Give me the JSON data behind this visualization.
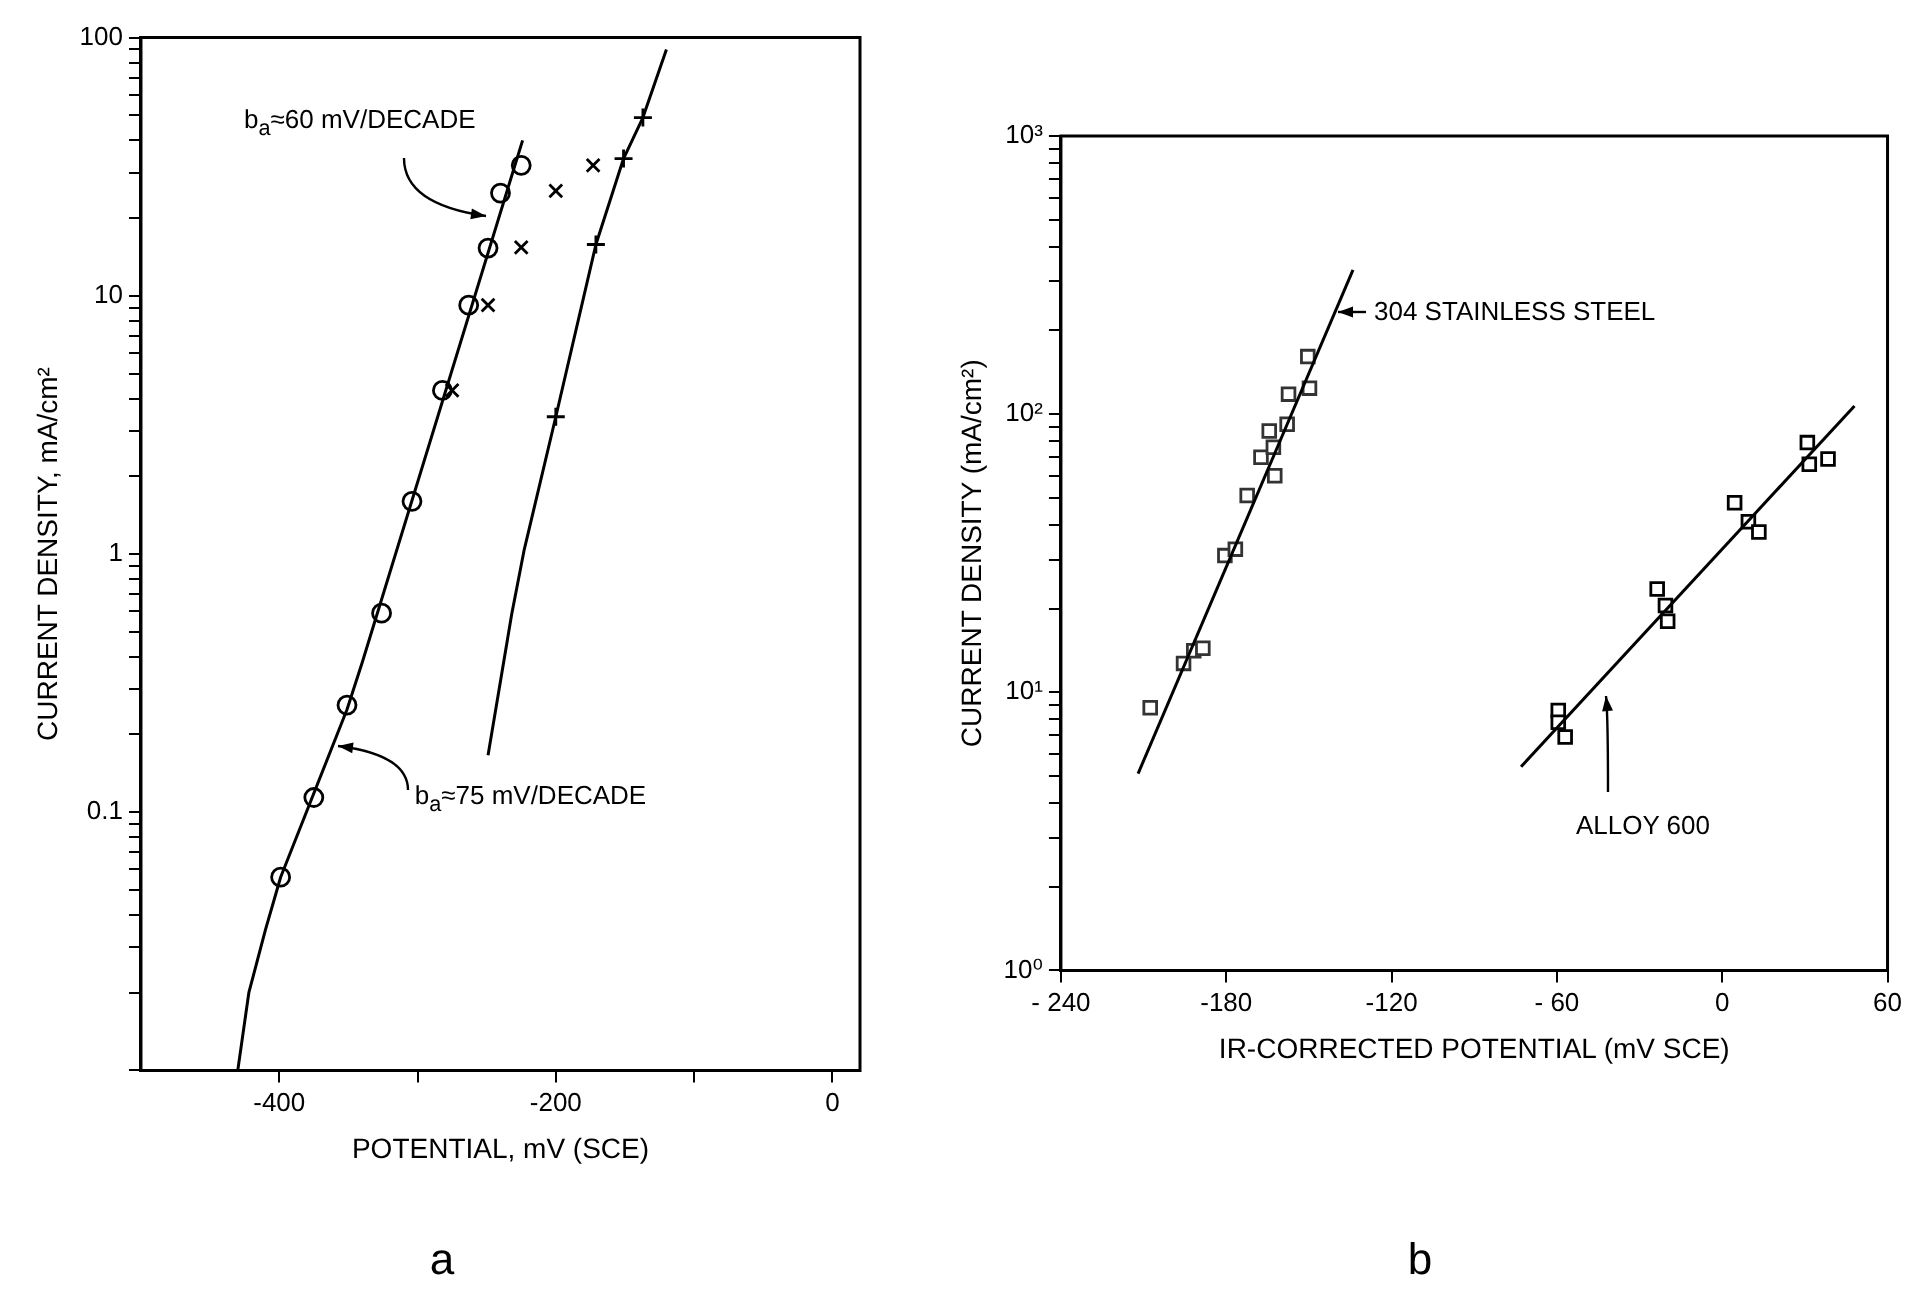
{
  "chart_data": [
    {
      "type": "scatter",
      "title": "a",
      "xlabel": "POTENTIAL, mV (SCE)",
      "ylabel": "CURRENT DENSITY, mA/cm²",
      "log": "y",
      "grid": false,
      "legend": false,
      "xlim": [
        -500,
        20
      ],
      "xticks": [
        -400,
        {
          "value": -300,
          "label": null
        },
        -200,
        {
          "value": -100,
          "label": null
        },
        0
      ],
      "ylim": [
        0.01,
        100
      ],
      "yticks": [
        {
          "value": 0.01,
          "label": null
        },
        {
          "value": 0.02,
          "label": null
        },
        {
          "value": 0.03,
          "label": null
        },
        {
          "value": 0.04,
          "label": null
        },
        {
          "value": 0.05,
          "label": null
        },
        {
          "value": 0.06,
          "label": null
        },
        {
          "value": 0.07,
          "label": null
        },
        {
          "value": 0.08,
          "label": null
        },
        {
          "value": 0.09,
          "label": null
        },
        0.1,
        {
          "value": 0.2,
          "label": null
        },
        {
          "value": 0.3,
          "label": null
        },
        {
          "value": 0.4,
          "label": null
        },
        {
          "value": 0.5,
          "label": null
        },
        {
          "value": 0.6,
          "label": null
        },
        {
          "value": 0.7,
          "label": null
        },
        {
          "value": 0.8,
          "label": null
        },
        {
          "value": 0.9,
          "label": null
        },
        1,
        {
          "value": 2,
          "label": null
        },
        {
          "value": 3,
          "label": null
        },
        {
          "value": 4,
          "label": null
        },
        {
          "value": 5,
          "label": null
        },
        {
          "value": 6,
          "label": null
        },
        {
          "value": 7,
          "label": null
        },
        {
          "value": 8,
          "label": null
        },
        {
          "value": 9,
          "label": null
        },
        10,
        {
          "value": 20,
          "label": null
        },
        {
          "value": 30,
          "label": null
        },
        {
          "value": 40,
          "label": null
        },
        {
          "value": 50,
          "label": null
        },
        {
          "value": 60,
          "label": null
        },
        {
          "value": 70,
          "label": null
        },
        {
          "value": 80,
          "label": null
        },
        {
          "value": 90,
          "label": null
        },
        100
      ],
      "series": [
        {
          "type": "scatter",
          "marker": "circle",
          "color": "#000000",
          "x": [
            -399,
            -375,
            -351,
            -326,
            -304,
            -282,
            -263,
            -249,
            -240,
            -225
          ],
          "values": [
            0.056,
            0.114,
            0.26,
            0.59,
            1.6,
            4.3,
            9.2,
            15.3,
            25,
            32
          ]
        },
        {
          "type": "line",
          "marker": "none",
          "color": "#000000",
          "x": [
            -430,
            -422,
            -410,
            -399,
            -351,
            -340,
            -224
          ],
          "values": [
            0.01,
            0.02,
            0.035,
            0.056,
            0.25,
            0.38,
            40
          ]
        },
        {
          "type": "scatter",
          "marker": "cross",
          "color": "#000000",
          "x": [
            -275,
            -249,
            -225,
            -200,
            -173
          ],
          "values": [
            4.3,
            9.2,
            15.4,
            25.5,
            32
          ]
        },
        {
          "type": "scatter",
          "marker": "plus",
          "color": "#000000",
          "x": [
            -200,
            -171,
            -151,
            -137
          ],
          "values": [
            3.4,
            15.8,
            34,
            49
          ]
        },
        {
          "type": "line",
          "marker": "none",
          "color": "#000000",
          "x": [
            -249,
            -232,
            -223,
            -200,
            -171,
            -151,
            -137,
            -120
          ],
          "values": [
            0.166,
            0.58,
            1.03,
            3.4,
            15.8,
            34,
            49,
            90
          ]
        }
      ],
      "annotations": [
        "b$_{a}$≈60 mV/DECADE",
        {
          "text": "b$_{a}$≈75 mV/DECADE",
          "x": -357,
          "y": 0.18
        }
      ]
    },
    {
      "type": "scatter",
      "title": "b",
      "xlabel": "IR-CORRECTED POTENTIAL (mV SCE)",
      "ylabel": "CURRENT DENSITY (mA/cm²)",
      "log": "y",
      "grid": false,
      "legend": false,
      "xlim": [
        -240,
        60
      ],
      "xticks": [
        {
          "value": -240,
          "label": "- 240"
        },
        -180,
        -120,
        {
          "value": -60,
          "label": "- 60"
        },
        0,
        60
      ],
      "ylim": [
        1,
        1000
      ],
      "yticks": [
        {
          "value": 1,
          "label": "10⁰"
        },
        {
          "value": 2,
          "label": null
        },
        {
          "value": 3,
          "label": null
        },
        {
          "value": 4,
          "label": null
        },
        {
          "value": 5,
          "label": null
        },
        {
          "value": 6,
          "label": null
        },
        {
          "value": 7,
          "label": null
        },
        {
          "value": 8,
          "label": null
        },
        {
          "value": 9,
          "label": null
        },
        {
          "value": 10,
          "label": "10¹"
        },
        {
          "value": 20,
          "label": null
        },
        {
          "value": 30,
          "label": null
        },
        {
          "value": 40,
          "label": null
        },
        {
          "value": 50,
          "label": null
        },
        {
          "value": 60,
          "label": null
        },
        {
          "value": 70,
          "label": null
        },
        {
          "value": 80,
          "label": null
        },
        {
          "value": 90,
          "label": null
        },
        {
          "value": 100,
          "label": "10²"
        },
        {
          "value": 200,
          "label": null
        },
        {
          "value": 300,
          "label": null
        },
        {
          "value": 400,
          "label": null
        },
        {
          "value": 500,
          "label": null
        },
        {
          "value": 600,
          "label": null
        },
        {
          "value": 700,
          "label": null
        },
        {
          "value": 800,
          "label": null
        },
        {
          "value": 900,
          "label": null
        },
        {
          "value": 1000,
          "label": "10³"
        }
      ],
      "series": [
        {
          "type": "scatter",
          "marker": "square",
          "color": "#333333",
          "x": [
            -207.6,
            -195.5,
            -191.8,
            -188.5,
            -180.5,
            -176.7,
            -172.4,
            -167.4,
            -164.4,
            -162.4,
            -162.9,
            -157.9,
            -157.4,
            -149.8,
            -150.4
          ],
          "values": [
            8.8,
            12.7,
            14.1,
            14.4,
            31,
            32.7,
            51,
            70,
            87,
            60,
            76,
            92,
            118,
            124,
            161
          ]
        },
        {
          "type": "line",
          "marker": "none",
          "color": "#000000",
          "x": [
            -212,
            -134
          ],
          "values": [
            5.1,
            330
          ]
        },
        {
          "type": "scatter",
          "marker": "square",
          "color": "#000000",
          "x": [
            -59.5,
            -59.5,
            -57,
            -23.6,
            -20.6,
            -19.8,
            4.5,
            9.5,
            13.3,
            30.9,
            31.6,
            38.4
          ],
          "values": [
            8.6,
            7.8,
            6.9,
            23.5,
            20.5,
            18,
            48,
            41,
            37.7,
            79,
            66,
            69
          ]
        },
        {
          "type": "line",
          "marker": "none",
          "color": "#000000",
          "x": [
            -73,
            48
          ],
          "values": [
            5.4,
            107
          ]
        }
      ],
      "annotations": [
        "304 STAINLESS STEEL",
        "ALLOY 600"
      ]
    }
  ]
}
